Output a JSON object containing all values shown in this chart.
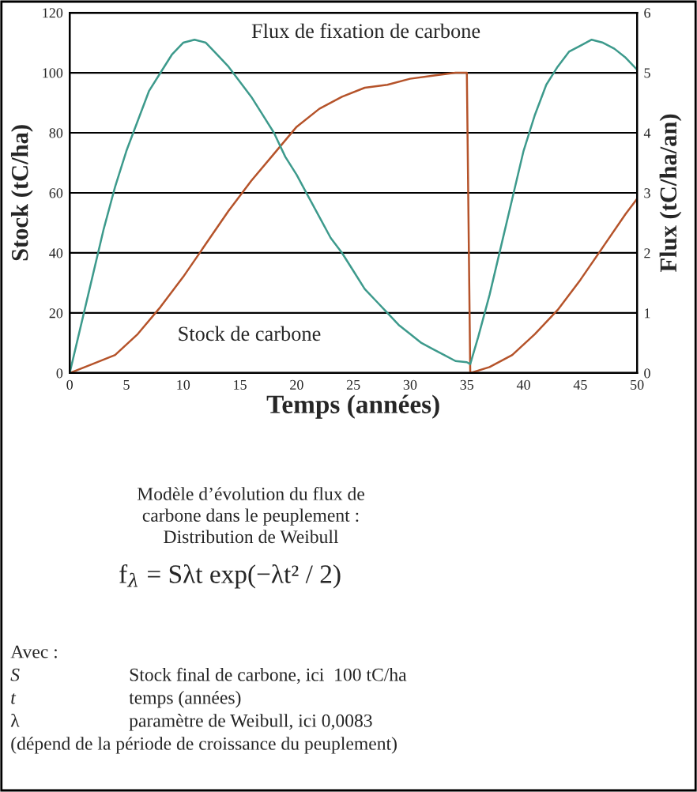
{
  "chart_data": {
    "type": "line",
    "xlabel": "Temps (années)",
    "ylabel": "Stock (tC/ha)",
    "y2label": "Flux (tC/ha/an)",
    "series": [
      {
        "name": "Flux de fixation de carbone",
        "color": "#3d9a8c",
        "axis": "y2",
        "x": [
          0,
          1,
          2,
          3,
          4,
          5,
          6,
          7,
          8,
          9,
          10,
          11,
          12,
          13,
          14,
          15,
          16,
          17,
          18,
          19,
          20,
          21,
          22,
          23,
          24,
          25,
          26,
          27,
          28,
          29,
          30,
          31,
          32,
          33,
          34,
          35,
          35.3,
          36,
          37,
          38,
          39,
          40,
          41,
          42,
          43,
          44,
          45,
          46,
          47,
          48,
          49,
          50
        ],
        "values": [
          0,
          0.8,
          1.6,
          2.4,
          3.1,
          3.7,
          4.2,
          4.7,
          5.0,
          5.3,
          5.5,
          5.55,
          5.5,
          5.3,
          5.1,
          4.85,
          4.6,
          4.3,
          4.0,
          3.6,
          3.3,
          2.95,
          2.6,
          2.25,
          2.0,
          1.7,
          1.4,
          1.2,
          1.0,
          0.8,
          0.65,
          0.5,
          0.4,
          0.3,
          0.2,
          0.18,
          0.15,
          0.6,
          1.3,
          2.1,
          2.9,
          3.7,
          4.3,
          4.8,
          5.1,
          5.35,
          5.45,
          5.55,
          5.5,
          5.4,
          5.25,
          5.05
        ]
      },
      {
        "name": "Stock de carbone",
        "color": "#b5532a",
        "x": [
          0,
          2,
          4,
          6,
          8,
          10,
          12,
          14,
          16,
          18,
          20,
          22,
          24,
          26,
          28,
          30,
          32,
          34,
          35,
          35.3,
          37,
          39,
          41,
          43,
          45,
          47,
          49,
          50
        ],
        "values": [
          0,
          3,
          6,
          13,
          22,
          32,
          43,
          54,
          64,
          73,
          82,
          88,
          92,
          95,
          96,
          98,
          99,
          100,
          100,
          0,
          2,
          6,
          13,
          21,
          31,
          42,
          53,
          58
        ]
      }
    ],
    "xlim": [
      0,
      50
    ],
    "xticks": [
      0,
      5,
      10,
      15,
      20,
      25,
      30,
      35,
      40,
      45,
      50
    ],
    "ylim": [
      0,
      120
    ],
    "yticks": [
      0,
      20,
      40,
      60,
      80,
      100,
      120
    ],
    "y2lim": [
      0,
      6
    ],
    "y2ticks": [
      0,
      1,
      2,
      3,
      4,
      5,
      6
    ],
    "grid": "y",
    "legend": false,
    "marker": "none",
    "line_style": "solid",
    "annotations": [
      "Modèle d’évolution du flux de\ncarbone dans le peuplement :\nDistribution de Weibull",
      "f$_{λ}$ = Sλt exp(−λt² / 2)",
      "Avec :",
      "S",
      "Stock final de carbone, ici  100 tC/ha",
      "t",
      "temps (années)",
      "λ",
      "paramètre de Weibull, ici 0,0083",
      "(dépend de la période de croissance du peuplement)"
    ]
  }
}
